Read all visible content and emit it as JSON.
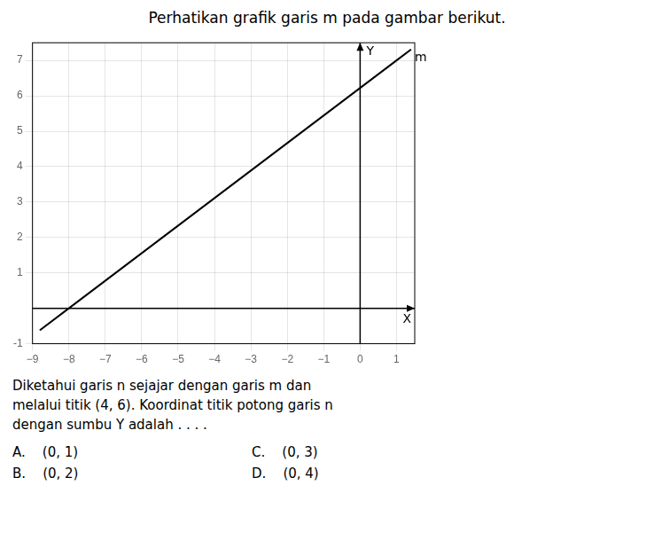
{
  "chart_data": {
    "type": "line",
    "title": "Perhatikan grafik garis m pada gambar berikut.",
    "xlabel": "X",
    "ylabel": "Y",
    "x": [
      -8.8,
      -8,
      1,
      1.4
    ],
    "series": [
      {
        "name": "m",
        "color": "#000000",
        "values": [
          -0.6222222222222222,
          0,
          7,
          7.311111111111111
        ]
      }
    ],
    "xlim": [
      -9,
      1.5
    ],
    "ylim": [
      -1,
      7.5
    ],
    "xticks": [
      {
        "value": -9,
        "label": "−9"
      },
      {
        "value": -8,
        "label": "−8"
      },
      {
        "value": -7,
        "label": "−7"
      },
      {
        "value": -6,
        "label": "−6"
      },
      {
        "value": -5,
        "label": "−5"
      },
      {
        "value": -4,
        "label": "−4"
      },
      {
        "value": -3,
        "label": "−3"
      },
      {
        "value": -2,
        "label": "−2"
      },
      {
        "value": -1,
        "label": "−1"
      },
      0,
      1
    ],
    "yticks": [
      -1,
      1,
      2,
      3,
      4,
      5,
      6,
      7
    ],
    "grid": true,
    "annotations": [
      "Diketahui garis n sejajar dengan garis m dan",
      "melalui titik (4, 6). Koordinat titik potong garis n",
      "dengan sumbu Y adalah . . . .",
      "A.    (0, 1)",
      "B.    (0, 2)",
      "C.    (0, 3)",
      "D.    (0, 4)"
    ]
  }
}
